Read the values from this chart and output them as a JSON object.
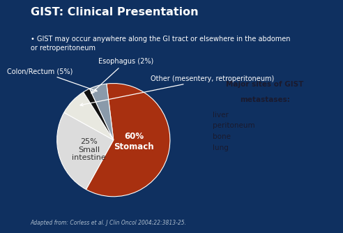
{
  "title": "GIST: Clinical Presentation",
  "background_color": "#0f3060",
  "title_color": "#ffffff",
  "bullet_text": "GIST may occur anywhere along the GI tract or elsewhere in the abdomen\nor retroperitoneum",
  "pie_slices": [
    {
      "label": "Stomach",
      "pct": 60,
      "color": "#a83010"
    },
    {
      "label": "Small intestine",
      "pct": 25,
      "color": "#dcdcdc"
    },
    {
      "label": "Other",
      "pct": 8,
      "color": "#e8e8e0"
    },
    {
      "label": "Esophagus",
      "pct": 2,
      "color": "#111111"
    },
    {
      "label": "Colon/Rectum",
      "pct": 5,
      "color": "#8a9aaa"
    }
  ],
  "startangle": 97,
  "annotation_colon": "Colon/Rectum (5%)",
  "annotation_esoph": "Esophagus (2%)",
  "annotation_other": "Other (mesentery, retroperitoneum)",
  "label_stomach_pct": "60%",
  "label_stomach": "Stomach",
  "label_si_pct": "25%",
  "label_si": "Small\nintestine",
  "box_title_line1": "Major sites of GIST",
  "box_title_line2": "metastases:",
  "box_items": [
    "liver",
    "peritoneum",
    "bone",
    "lung"
  ],
  "footnote": "Adapted from: Corless et al. J Clin Oncol 2004;22:3813-25.",
  "footnote_color": "#aabbcc",
  "annotation_color": "#ffffff",
  "box_bg": "#c0c8d0",
  "box_text_color": "#1a1a2e",
  "orange_line_color": "#c87020"
}
